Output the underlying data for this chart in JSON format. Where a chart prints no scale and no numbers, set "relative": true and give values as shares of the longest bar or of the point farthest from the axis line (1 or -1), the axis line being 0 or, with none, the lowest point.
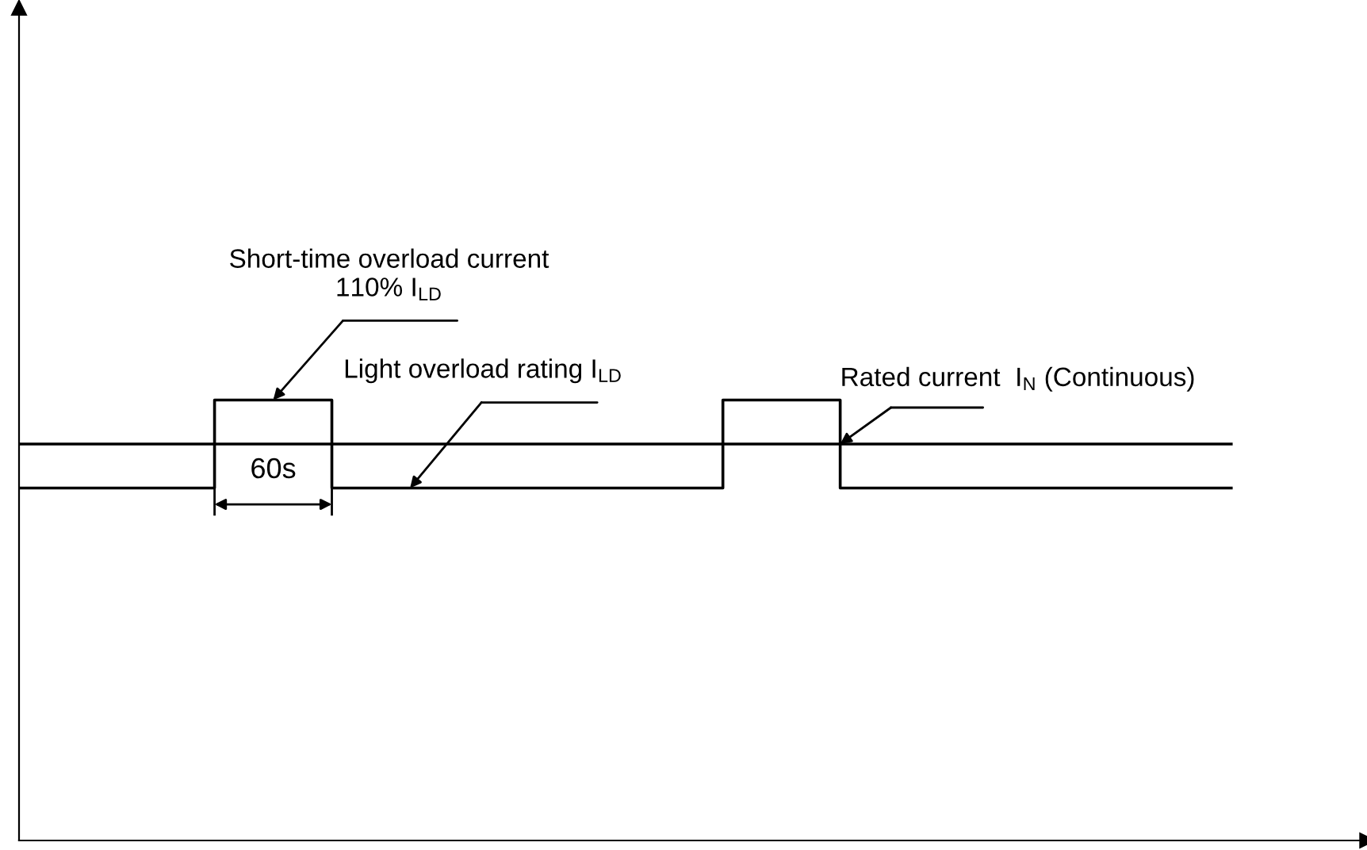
{
  "chart_data": {
    "type": "step",
    "relative": true,
    "grid": false,
    "legend": false,
    "marker": "none",
    "line_style": "solid",
    "categories": [
      null,
      null,
      null,
      null,
      null,
      null,
      null,
      null,
      null,
      null,
      null,
      null,
      null,
      null,
      null,
      null,
      null,
      null,
      null,
      null,
      null,
      null,
      null,
      null,
      null,
      null,
      null,
      null,
      null,
      null,
      null,
      null
    ],
    "series": [
      {
        "color": "#000000",
        "values": [
          0.8,
          0.8,
          0.8,
          0.8,
          0.8,
          1,
          1,
          1,
          0.8,
          0.8,
          0.8,
          0.8,
          0.8,
          0.8,
          0.8,
          0.8,
          0.8,
          0.8,
          1,
          1,
          1,
          0.8,
          0.8,
          0.8,
          0.8,
          0.8,
          0.8,
          0.8,
          0.8,
          0.8,
          0.8,
          0.8
        ]
      },
      {
        "color": "#000000",
        "values": [
          0.9,
          0.9,
          0.9,
          0.9,
          0.9,
          0.9,
          0.9,
          0.9,
          0.9,
          0.9,
          0.9,
          0.9,
          0.9,
          0.9,
          0.9,
          0.9,
          0.9,
          0.9,
          0.9,
          0.9,
          0.9,
          0.9,
          0.9,
          0.9,
          0.9,
          0.9,
          0.9,
          0.9,
          0.9,
          0.9,
          0.9,
          0.9
        ]
      }
    ],
    "annotations": [
      "Short-time overload current\n110% I$_{LD}$",
      "Light overload rating I$_{LD}$",
      "Rated current  I$_{N}$ (Continuous)",
      "60s"
    ]
  }
}
